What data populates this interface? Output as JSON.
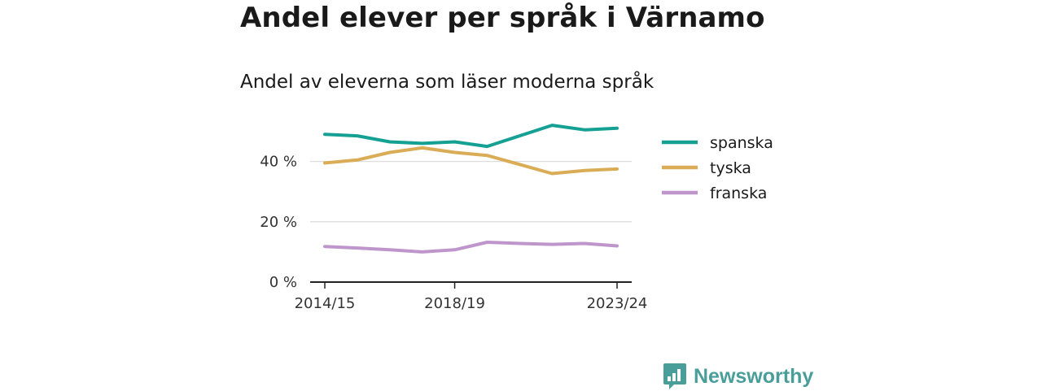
{
  "header": {
    "title": "Andel elever per språk i Värnamo",
    "subtitle": "Andel av eleverna som läser moderna språk"
  },
  "brand": {
    "name": "Newsworthy",
    "icon": "newsworthy-logo-icon"
  },
  "colors": {
    "spanska": "#14a093",
    "tyska": "#d9ac55",
    "franska": "#be96cc",
    "grid": "#dddddd",
    "axis": "#222222",
    "brand": "#4a9e99"
  },
  "chart_data": {
    "type": "line",
    "title": "Andel elever per språk i Värnamo",
    "subtitle": "Andel av eleverna som läser moderna språk",
    "x": [
      "2014/15",
      "2015/16",
      "2016/17",
      "2017/18",
      "2018/19",
      "2019/20",
      "2020/21",
      "2021/22",
      "2022/23",
      "2023/24"
    ],
    "x_tick_labels": [
      "2014/15",
      "2018/19",
      "2023/24"
    ],
    "y_ticks": [
      0,
      20,
      40
    ],
    "y_tick_labels": [
      "0 %",
      "20 %",
      "40 %"
    ],
    "ylim": [
      0,
      55
    ],
    "grid": true,
    "legend_position": "right",
    "series": [
      {
        "name": "spanska",
        "values": [
          49,
          48.5,
          46.5,
          46,
          46.5,
          45,
          48.5,
          52,
          50.5,
          51
        ]
      },
      {
        "name": "tyska",
        "values": [
          39.5,
          40.5,
          43,
          44.5,
          43,
          42,
          39,
          36,
          37,
          37.5
        ]
      },
      {
        "name": "franska",
        "values": [
          11.8,
          11.3,
          10.7,
          10,
          10.7,
          13.2,
          12.8,
          12.5,
          12.8,
          12
        ]
      }
    ]
  }
}
